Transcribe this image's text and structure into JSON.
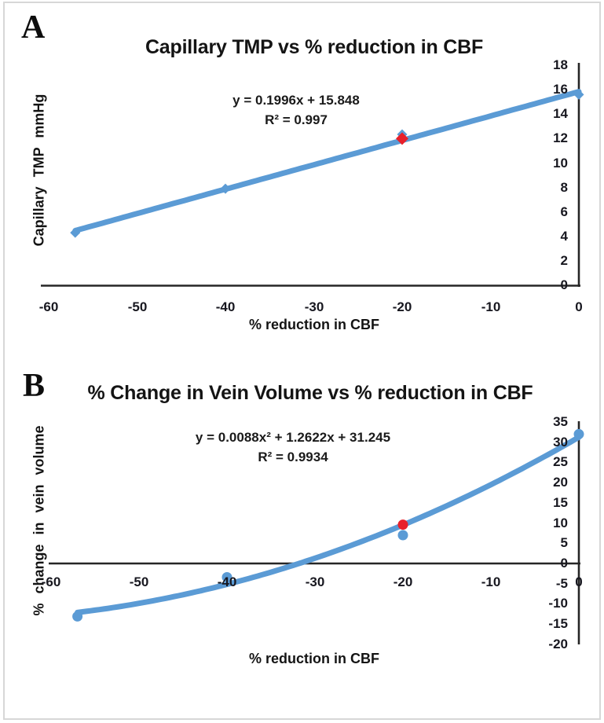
{
  "figure": {
    "border_color": "#d7d7d7",
    "background": "#ffffff"
  },
  "chart_data": [
    {
      "panel_letter": "A",
      "type": "scatter",
      "title": "Capillary TMP vs % reduction in CBF",
      "annotation": [
        "y = 0.1996x + 15.848",
        "R² = 0.997"
      ],
      "xlabel": "% reduction in CBF",
      "ylabel": "Capillary TMP mmHg",
      "xlim": [
        -60,
        0
      ],
      "ylim": [
        0,
        18
      ],
      "x_ticks": [
        -60,
        -50,
        -40,
        -30,
        -20,
        -10,
        0
      ],
      "y_ticks": [
        18,
        16,
        14,
        12,
        10,
        8,
        6,
        4,
        2,
        0
      ],
      "grid": false,
      "y_axis_side": "right",
      "marker": "diamond",
      "line_color": "#5B9BD5",
      "highlight_color": "#E8202A",
      "axis_color": "#262626",
      "trend": {
        "kind": "linear",
        "slope": 0.1996,
        "intercept": 15.848,
        "domain": [
          -57,
          0
        ]
      },
      "points": [
        {
          "x": -57,
          "y": 4.3
        },
        {
          "x": -40,
          "y": 7.9
        },
        {
          "x": -20,
          "y": 12.35
        },
        {
          "x": 0,
          "y": 15.6
        }
      ],
      "highlight_point": {
        "x": -20,
        "y": 12.0
      }
    },
    {
      "panel_letter": "B",
      "type": "scatter",
      "title": "% Change in Vein Volume vs  % reduction in CBF",
      "annotation": [
        "y = 0.0088x² + 1.2622x + 31.245",
        "R² = 0.9934"
      ],
      "xlabel": "% reduction in CBF",
      "ylabel": "% change in vein volume",
      "xlim": [
        -60,
        0
      ],
      "ylim": [
        -20,
        35
      ],
      "x_ticks": [
        -60,
        -50,
        -40,
        -30,
        -20,
        -10,
        0
      ],
      "y_ticks": [
        35,
        30,
        25,
        20,
        15,
        10,
        5,
        0,
        -5,
        -10,
        -15,
        -20
      ],
      "grid": false,
      "y_axis_side": "right",
      "marker": "circle",
      "line_color": "#5B9BD5",
      "highlight_color": "#E8202A",
      "axis_color": "#262626",
      "trend": {
        "kind": "quadratic",
        "a": 0.0088,
        "b": 1.2622,
        "c": 31.245,
        "domain": [
          -57,
          0
        ]
      },
      "points": [
        {
          "x": -57,
          "y": -13.1
        },
        {
          "x": -40,
          "y": -3.4
        },
        {
          "x": -20,
          "y": 7.0
        },
        {
          "x": 0,
          "y": 32.0
        }
      ],
      "highlight_point": {
        "x": -20,
        "y": 9.6
      }
    }
  ]
}
